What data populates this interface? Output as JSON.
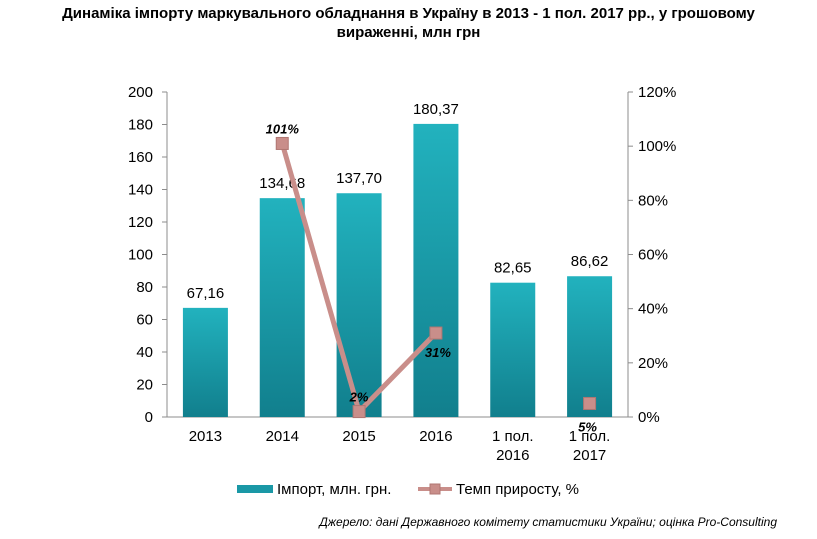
{
  "chart_data": {
    "type": "bar",
    "title_lines": [
      "Динаміка імпорту маркувального обладнання в Україну в 2013 - 1 пол. 2017 рр., у грошовому",
      "вираженні, млн грн"
    ],
    "categories": [
      [
        "2013"
      ],
      [
        "2014"
      ],
      [
        "2015"
      ],
      [
        "2016"
      ],
      [
        "1 пол.",
        "2016"
      ],
      [
        "1 пол.",
        "2017"
      ]
    ],
    "series": [
      {
        "name": "Імпорт, млн. грн.",
        "kind": "bar",
        "axis": "left",
        "values": [
          67.16,
          134.68,
          137.7,
          180.37,
          82.65,
          86.62
        ],
        "labels": [
          "67,16",
          "134,68",
          "137,70",
          "180,37",
          "82,65",
          "86,62"
        ],
        "color": "#1fa5b3"
      },
      {
        "name": "Темп приросту, %",
        "kind": "line",
        "axis": "right",
        "values": [
          null,
          101,
          2,
          31,
          null,
          5
        ],
        "labels": [
          "",
          "101%",
          "2%",
          "31%",
          "",
          "5%"
        ],
        "color": "#c98e8a"
      }
    ],
    "y_left": {
      "min": 0,
      "max": 200,
      "ticks": [
        "0",
        "20",
        "40",
        "60",
        "80",
        "100",
        "120",
        "140",
        "160",
        "180",
        "200"
      ]
    },
    "y_right": {
      "min": 0,
      "max": 120,
      "ticks": [
        "0%",
        "20%",
        "40%",
        "60%",
        "80%",
        "100%",
        "120%"
      ]
    },
    "grid": false,
    "legend_position": "bottom"
  },
  "source": "Джерело: дані Державного комітету статистики України; оцінка Pro-Consulting"
}
